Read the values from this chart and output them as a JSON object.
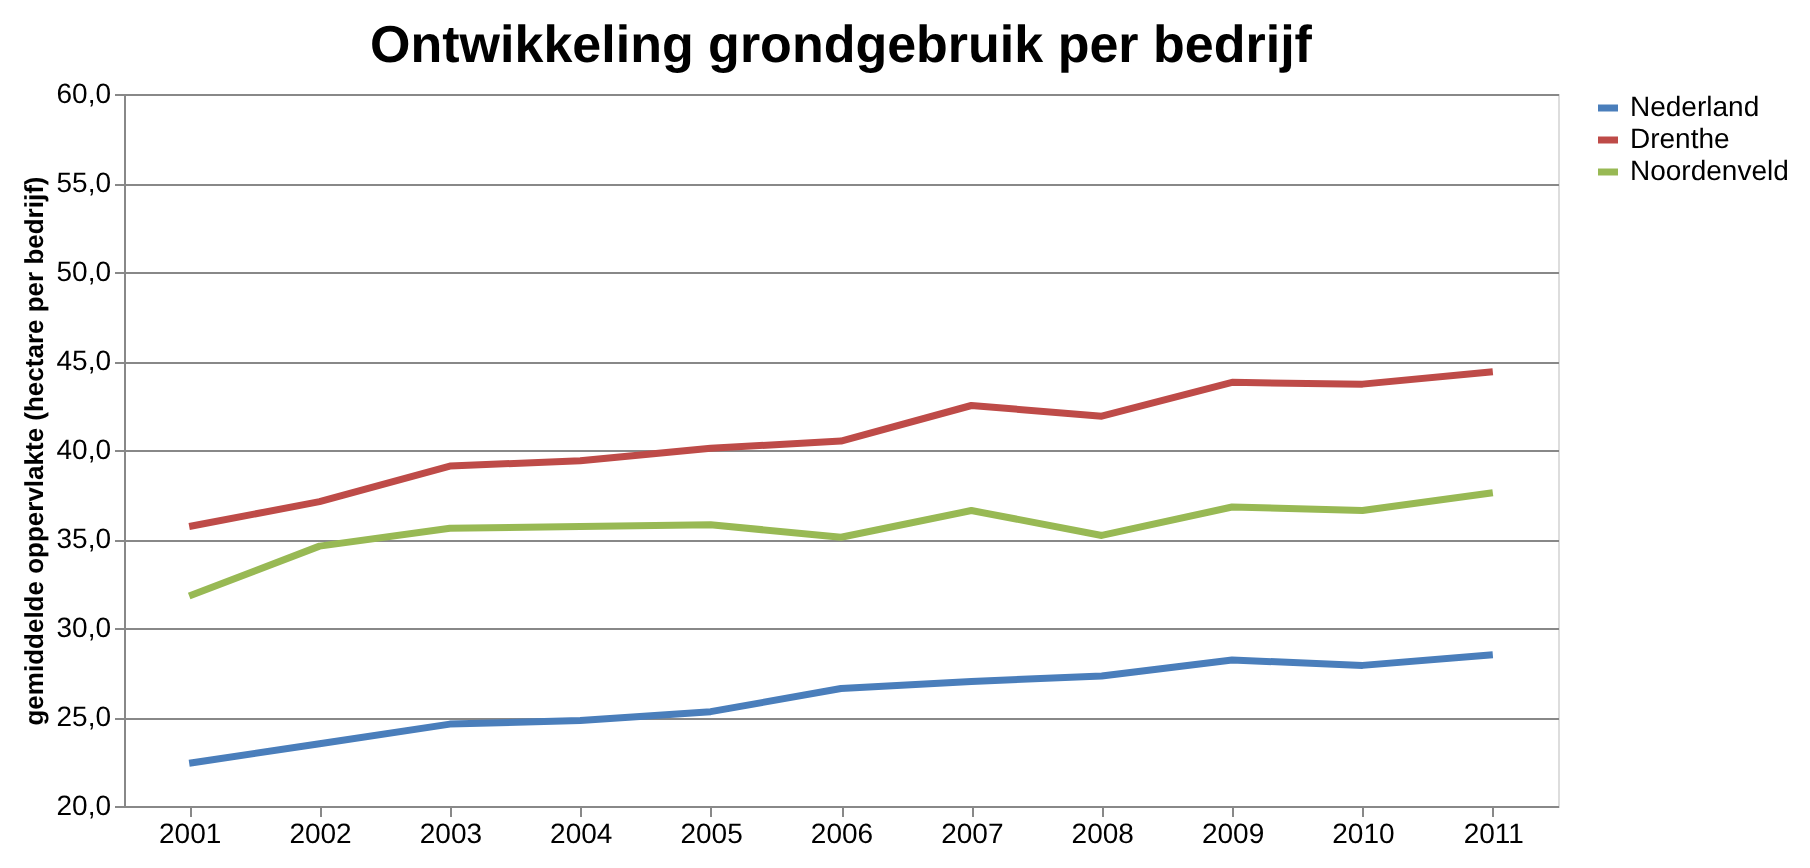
{
  "chart_data": {
    "type": "line",
    "title": "Ontwikkeling grondgebruik per bedrijf",
    "ylabel": "gemiddelde oppervlakte (hectare per bedrijf)",
    "categories": [
      "2001",
      "2002",
      "2003",
      "2004",
      "2005",
      "2006",
      "2007",
      "2008",
      "2009",
      "2010",
      "2011"
    ],
    "series": [
      {
        "name": "Nederland",
        "color": "#4a7ebb",
        "values": [
          22.4,
          23.5,
          24.6,
          24.8,
          25.3,
          26.6,
          27.0,
          27.3,
          28.2,
          27.9,
          28.5
        ]
      },
      {
        "name": "Drenthe",
        "color": "#be4b48",
        "values": [
          35.7,
          37.1,
          39.1,
          39.4,
          40.1,
          40.5,
          42.5,
          41.9,
          43.8,
          43.7,
          44.4
        ]
      },
      {
        "name": "Noordenveld",
        "color": "#98b954",
        "values": [
          31.8,
          34.6,
          35.6,
          35.7,
          35.8,
          35.1,
          36.6,
          35.2,
          36.8,
          36.6,
          37.6
        ]
      }
    ],
    "ylim": [
      20,
      60
    ],
    "yticks": [
      {
        "value": 20,
        "label": "20,0"
      },
      {
        "value": 25,
        "label": "25,0"
      },
      {
        "value": 30,
        "label": "30,0"
      },
      {
        "value": 35,
        "label": "35,0"
      },
      {
        "value": 40,
        "label": "40,0"
      },
      {
        "value": 45,
        "label": "45,0"
      },
      {
        "value": 50,
        "label": "50,0"
      },
      {
        "value": 55,
        "label": "55,0"
      },
      {
        "value": 60,
        "label": "60,0"
      }
    ],
    "grid": "y",
    "legend": "right",
    "marker": "none",
    "line_style": "solid"
  }
}
